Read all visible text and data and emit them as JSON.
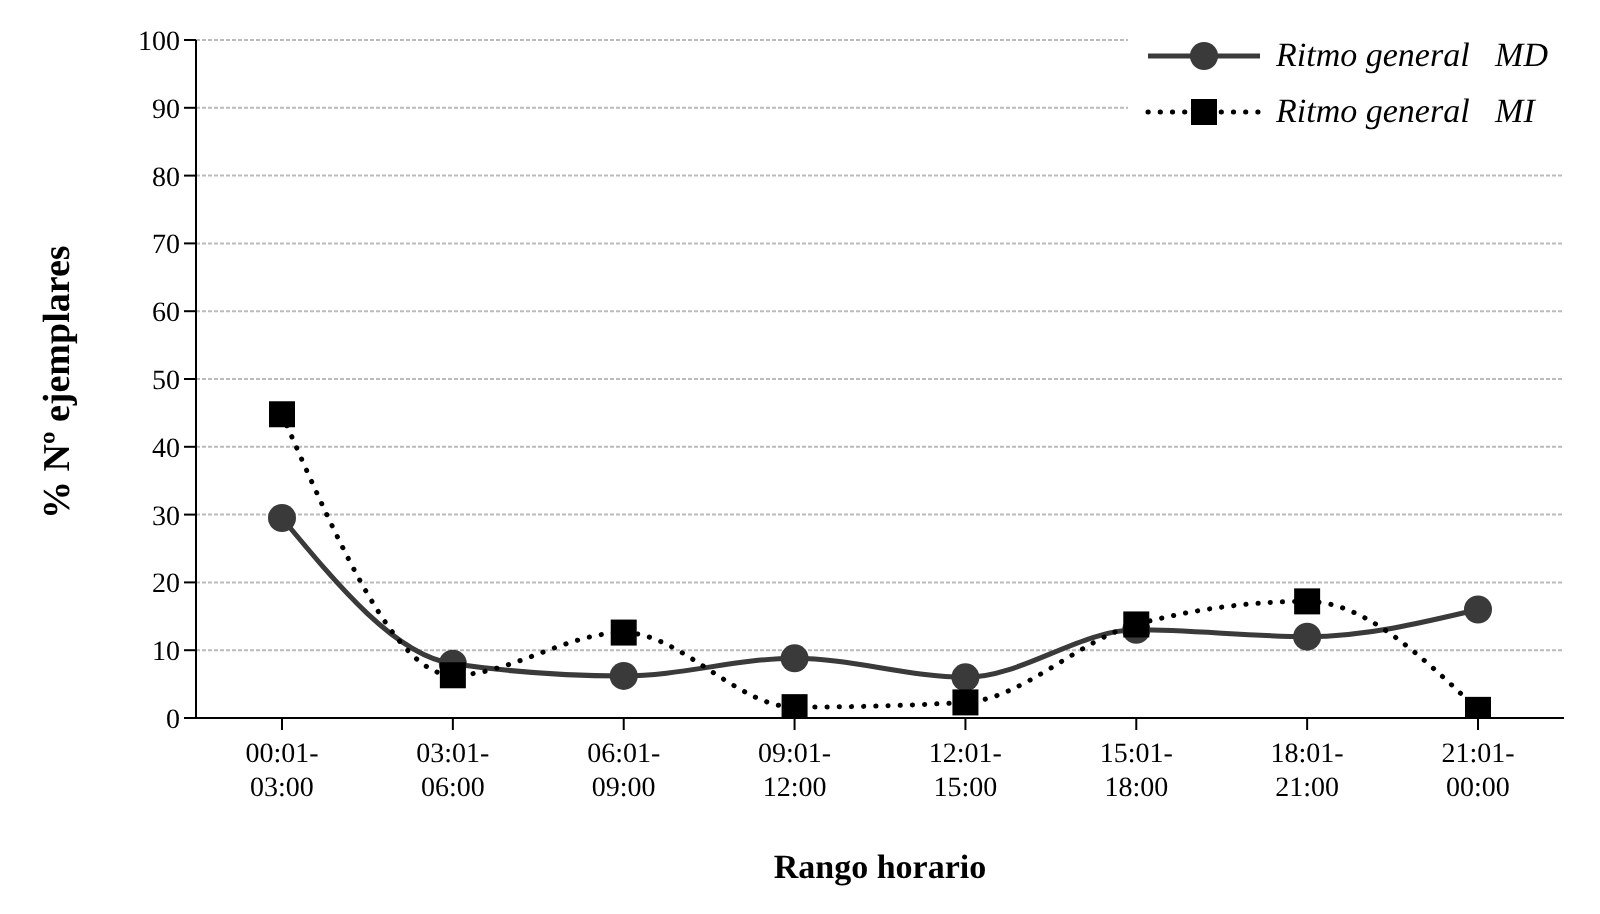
{
  "chart_data": {
    "type": "line",
    "xlabel": "Rango horario",
    "ylabel": "% Nº ejemplares",
    "categories": [
      "00:01-03:00",
      "03:01-06:00",
      "06:01-09:00",
      "09:01-12:00",
      "12:01-15:00",
      "15:01-18:00",
      "18:01-21:00",
      "21:01-00:00"
    ],
    "series": [
      {
        "name": "Ritmo general   MD",
        "color": "#3a3a3a",
        "marker": "circle",
        "line_style": "solid",
        "values": [
          29.5,
          8,
          6.2,
          8.8,
          6,
          13,
          12,
          16
        ]
      },
      {
        "name": "Ritmo general   MI",
        "color": "#000000",
        "marker": "square",
        "line_style": "dotted",
        "values": [
          44.8,
          6.3,
          12.6,
          1.6,
          2.3,
          13.8,
          17.2,
          1.2
        ]
      }
    ],
    "ylim": [
      0,
      100
    ],
    "yticks": [
      0,
      10,
      20,
      30,
      40,
      50,
      60,
      70,
      80,
      90,
      100
    ],
    "grid": "y",
    "legend": "top right"
  }
}
